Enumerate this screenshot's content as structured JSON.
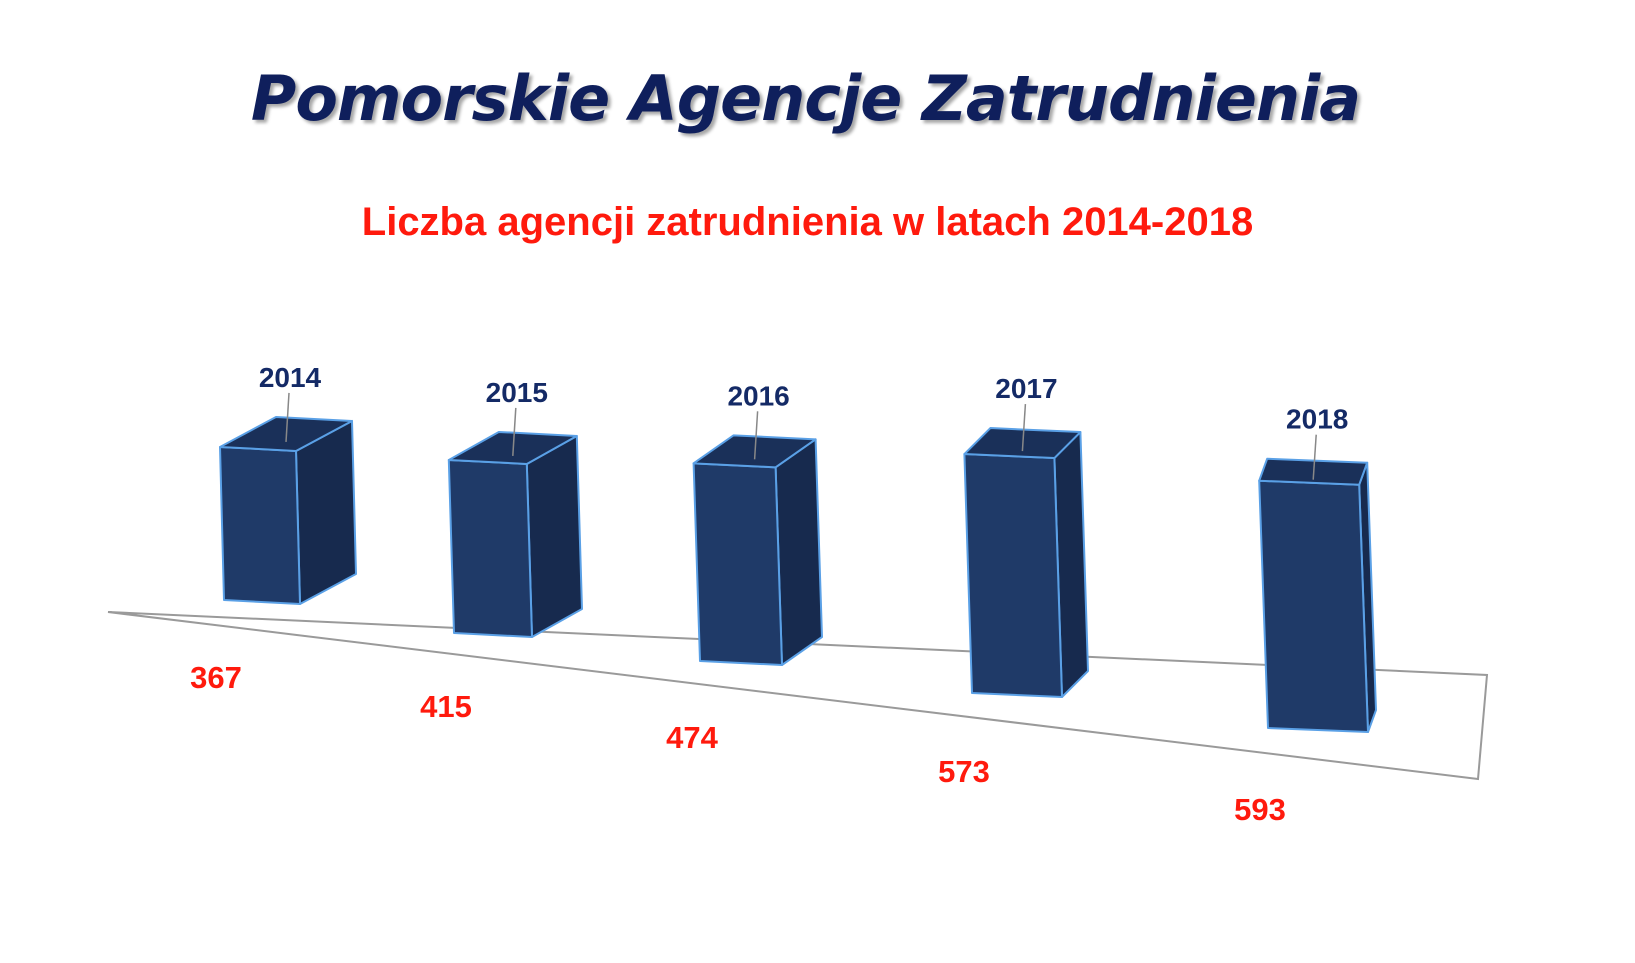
{
  "title": "Pomorskie Agencje Zatrudnienia",
  "chart_data": {
    "type": "bar",
    "title": "Liczba agencji zatrudnienia w latach 2014-2018",
    "categories": [
      "2014",
      "2015",
      "2016",
      "2017",
      "2018"
    ],
    "values": [
      367,
      415,
      474,
      573,
      593
    ],
    "xlabel": "",
    "ylabel": "",
    "grid": false,
    "legend": "none",
    "colors": {
      "bar_front": "#1f3a68",
      "bar_side": "#172a4e",
      "bar_top": "#1a3059",
      "bar_edge": "#5aa0e6",
      "floor_line": "#9a9a9a",
      "year_label": "#142a66",
      "value_label": "#ff1a0d"
    }
  }
}
